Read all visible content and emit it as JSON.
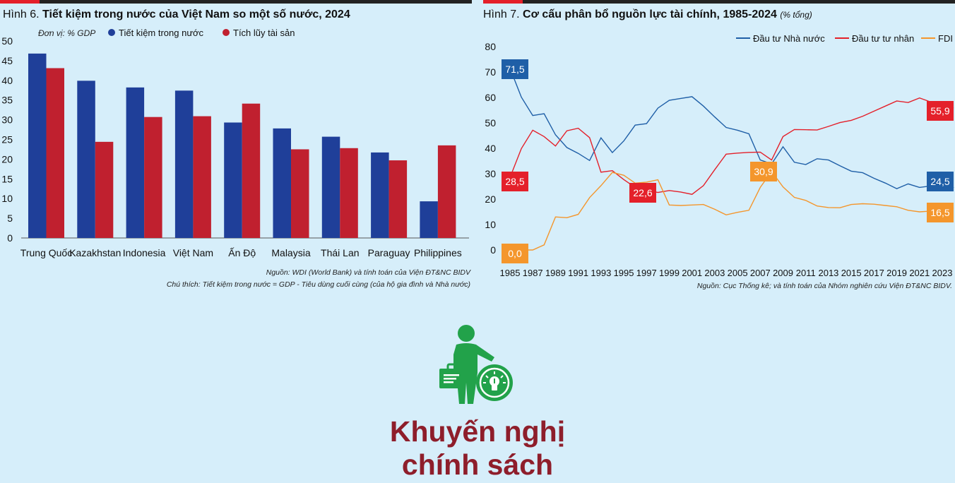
{
  "colors": {
    "state": "#1f5fa7",
    "private": "#e4202a",
    "fdi": "#f4962c",
    "savings_bar": "#1f3f99",
    "accum_bar": "#c0202f",
    "headline": "#8e1e2b",
    "icon_green": "#22a24a"
  },
  "chart_data": [
    {
      "type": "bar",
      "title_prefix": "Hình 6. ",
      "title": "Tiết kiệm trong nước của Việt Nam so một số nước, 2024",
      "unit_label": "Đơn vị: % GDP",
      "categories": [
        "Trung Quốc",
        "Kazakhstan",
        "Indonesia",
        "Việt Nam",
        "Ấn Độ",
        "Malaysia",
        "Thái Lan",
        "Paraguay",
        "Philippines"
      ],
      "series": [
        {
          "name": "Tiết kiệm trong nước",
          "values": [
            46.8,
            39.9,
            38.2,
            37.4,
            29.3,
            27.8,
            25.7,
            21.7,
            9.3
          ]
        },
        {
          "name": "Tích lũy tài sản",
          "values": [
            43.1,
            24.4,
            30.7,
            30.9,
            34.1,
            22.5,
            22.8,
            19.7,
            23.5
          ]
        }
      ],
      "yticks": [
        "0",
        "5",
        "10",
        "15",
        "20",
        "25",
        "30",
        "35",
        "40",
        "45",
        "50"
      ],
      "ylim": [
        0,
        50
      ],
      "source": "Nguồn: WDI (World Bank) và tính toán của Viện ĐT&NC BIDV",
      "note": "Chú thích: Tiết kiệm trong nước = GDP - Tiêu dùng cuối cùng (của hộ gia đình và Nhà nước)"
    },
    {
      "type": "line",
      "title_prefix": "Hình 7. ",
      "title": "Cơ cấu phân bổ nguồn lực tài chính, 1985-2024",
      "subtitle": "(% tổng)",
      "x": [
        1985,
        1986,
        1987,
        1988,
        1989,
        1990,
        1991,
        1992,
        1993,
        1994,
        1995,
        1996,
        1997,
        1998,
        1999,
        2000,
        2001,
        2002,
        2003,
        2004,
        2005,
        2006,
        2007,
        2008,
        2009,
        2010,
        2011,
        2012,
        2013,
        2014,
        2015,
        2016,
        2017,
        2018,
        2019,
        2020,
        2021,
        2022,
        2023,
        2024
      ],
      "xticks": [
        "1985",
        "1987",
        "1989",
        "1991",
        "1993",
        "1995",
        "1997",
        "1999",
        "2001",
        "2003",
        "2005",
        "2007",
        "2009",
        "2011",
        "2013",
        "2015",
        "2017",
        "2019",
        "2021",
        "2023"
      ],
      "yticks": [
        "0",
        "10",
        "20",
        "30",
        "40",
        "50",
        "60",
        "70",
        "80"
      ],
      "ylim": [
        0,
        80
      ],
      "series": [
        {
          "name": "Đầu tư Nhà nước",
          "values": [
            71.5,
            60.1,
            52.9,
            53.6,
            45.3,
            40.3,
            38,
            35.2,
            44.1,
            38.3,
            42.9,
            49.1,
            49.7,
            55.8,
            58.9,
            59.6,
            60.3,
            56.6,
            52.3,
            48.2,
            47.1,
            45.7,
            35.4,
            33.9,
            40.6,
            34.5,
            33.6,
            35.9,
            35.4,
            33.1,
            31,
            30.4,
            28.2,
            26.3,
            24.1,
            26,
            24.6,
            25.2,
            27.2,
            24.5
          ]
        },
        {
          "name": "Đầu tư tư nhân",
          "values": [
            28.5,
            39.9,
            47.1,
            44.6,
            40.9,
            46.9,
            47.9,
            44.2,
            30.6,
            31.2,
            27.7,
            24.6,
            23.5,
            22.6,
            23.4,
            22.8,
            21.9,
            25.3,
            31.6,
            37.7,
            38.1,
            38.4,
            38.5,
            35.4,
            44.6,
            47.4,
            47.3,
            47.2,
            48.6,
            50.1,
            51,
            52.6,
            54.6,
            56.6,
            58.6,
            58,
            59.8,
            58.2,
            56.6,
            55.9
          ]
        },
        {
          "name": "FDI",
          "values": [
            0,
            0,
            0,
            2,
            13,
            12.7,
            14,
            20.6,
            25.3,
            30.5,
            29.4,
            26.3,
            26.7,
            27.6,
            17.7,
            17.5,
            17.7,
            17.9,
            16,
            13.8,
            14.8,
            15.6,
            24.6,
            30.9,
            24.8,
            20.7,
            19.5,
            17.3,
            16.7,
            16.6,
            17.9,
            18.2,
            18,
            17.5,
            17,
            15.6,
            15,
            15.3,
            16.2,
            16.5
          ]
        }
      ],
      "labels": [
        {
          "series": "Đầu tư Nhà nước",
          "value": "71,5"
        },
        {
          "series": "Đầu tư tư nhân",
          "value": "28,5"
        },
        {
          "series": "FDI",
          "value": "0,0"
        },
        {
          "series": "Đầu tư tư nhân",
          "value": "22,6"
        },
        {
          "series": "FDI",
          "value": "30,9"
        },
        {
          "series": "Đầu tư tư nhân",
          "value": "55,9"
        },
        {
          "series": "Đầu tư Nhà nước",
          "value": "24,5"
        },
        {
          "series": "FDI",
          "value": "16,5"
        }
      ],
      "source": "Nguồn: Cục Thống kê; và tính toán của Nhóm nghiên cứu Viện ĐT&NC BIDV."
    }
  ],
  "headline": {
    "line1": "Khuyến nghị",
    "line2": "chính sách"
  },
  "icon_name": "businessman-idea-icon"
}
